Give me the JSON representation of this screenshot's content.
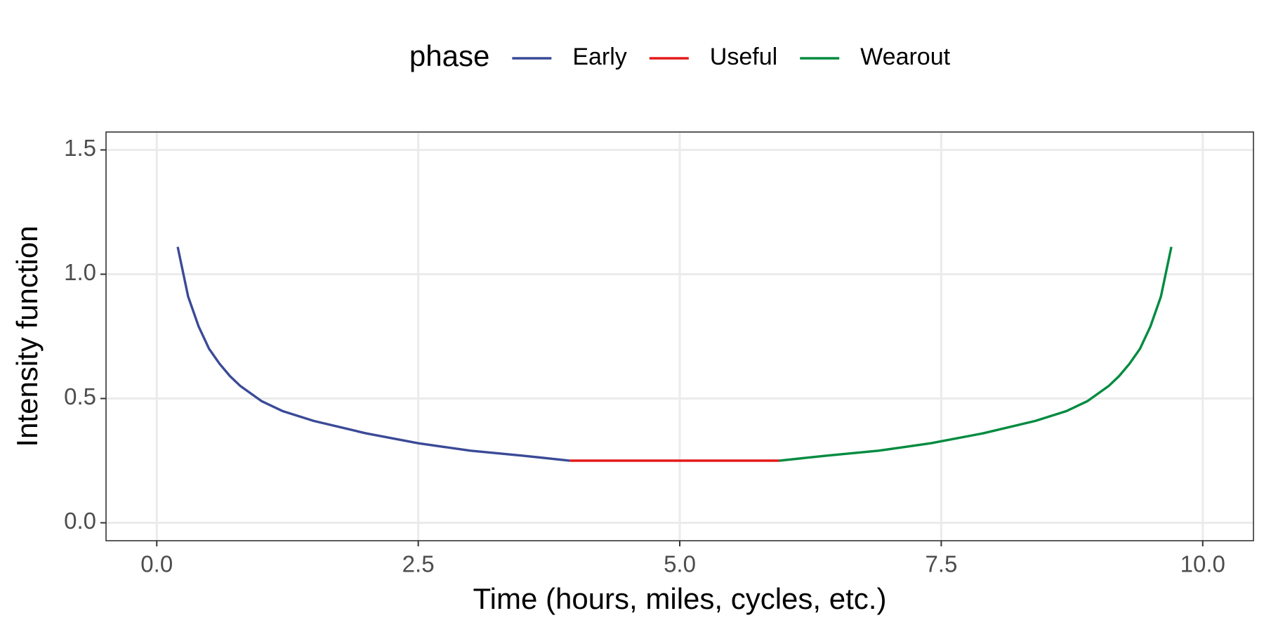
{
  "chart_data": {
    "type": "line",
    "x_label": "Time (hours, miles, cycles, etc.)",
    "y_label": "Intensity function",
    "legend_title": "phase",
    "legend_position": "top",
    "grid": true,
    "xlim": [
      -0.485,
      10.485
    ],
    "ylim": [
      -0.072,
      1.572
    ],
    "xticks": [
      {
        "value": 0,
        "label": "0.0"
      },
      2.5,
      {
        "value": 5,
        "label": "5.0"
      },
      7.5,
      {
        "value": 10,
        "label": "10.0"
      }
    ],
    "yticks": [
      {
        "value": 0,
        "label": "0.0"
      },
      0.5,
      {
        "value": 1,
        "label": "1.0"
      },
      1.5
    ],
    "series": [
      {
        "name": "Early",
        "color": "#3b4a97",
        "x": [
          0.2,
          0.3,
          0.4,
          0.5,
          0.6,
          0.7,
          0.8,
          0.9,
          1.0,
          1.2,
          1.5,
          2.0,
          2.5,
          3.0,
          3.5,
          3.95
        ],
        "values": [
          1.11,
          0.91,
          0.79,
          0.7,
          0.64,
          0.59,
          0.55,
          0.52,
          0.49,
          0.45,
          0.41,
          0.36,
          0.32,
          0.29,
          0.27,
          0.25
        ]
      },
      {
        "name": "Useful",
        "color": "#e31a1c",
        "x": [
          3.95,
          5.95
        ],
        "values": [
          0.25,
          0.25
        ]
      },
      {
        "name": "Wearout",
        "color": "#008b3f",
        "x": [
          5.95,
          6.4,
          6.9,
          7.4,
          7.9,
          8.4,
          8.7,
          8.9,
          9.0,
          9.1,
          9.2,
          9.3,
          9.4,
          9.5,
          9.6,
          9.7
        ],
        "values": [
          0.25,
          0.27,
          0.29,
          0.32,
          0.36,
          0.41,
          0.45,
          0.49,
          0.52,
          0.55,
          0.59,
          0.64,
          0.7,
          0.79,
          0.91,
          1.11
        ]
      }
    ]
  }
}
